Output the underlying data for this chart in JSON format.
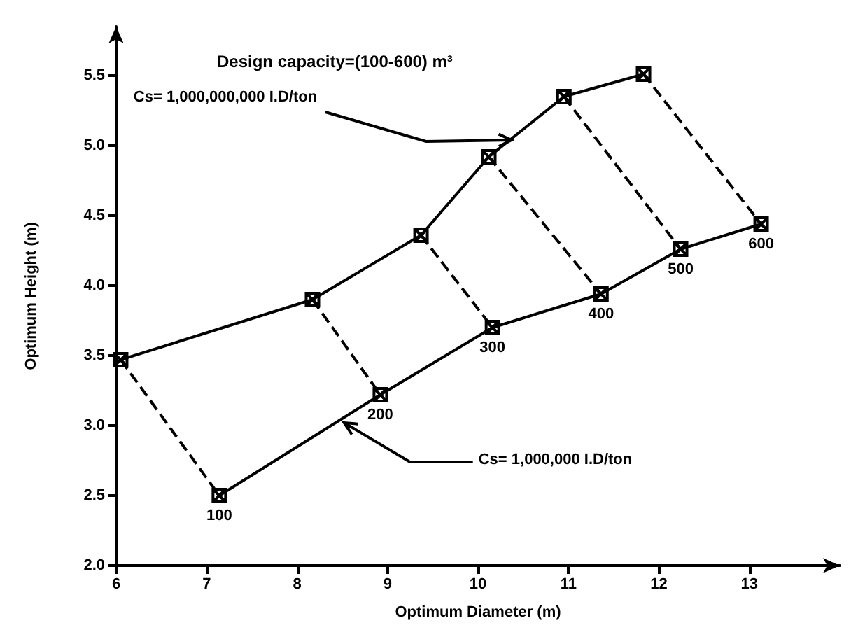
{
  "chart_data": {
    "type": "line",
    "title": "Design capacity=(100-600) m³",
    "xlabel": "Optimum Diameter (m)",
    "ylabel": "Optimum Height (m)",
    "xlim": [
      6,
      14
    ],
    "xticks": [
      6,
      7,
      8,
      9,
      10,
      11,
      12,
      13
    ],
    "ylim": [
      2,
      5.85
    ],
    "yticks": [
      {
        "value": 2,
        "label": "2.0"
      },
      {
        "value": 2.5,
        "label": "2.5"
      },
      {
        "value": 3,
        "label": "3.0"
      },
      {
        "value": 3.5,
        "label": "3.5"
      },
      {
        "value": 4,
        "label": "4.0"
      },
      {
        "value": 4.5,
        "label": "4.5"
      },
      {
        "value": 5,
        "label": "5.0"
      },
      {
        "value": 5.5,
        "label": "5.5"
      }
    ],
    "grid": false,
    "marker": "cross",
    "series": [
      {
        "color": "#000000",
        "x": [
          6.05,
          8.17,
          9.37,
          10.12,
          10.95,
          11.83
        ],
        "values": [
          3.47,
          3.9,
          4.36,
          4.92,
          5.35,
          5.51
        ]
      },
      {
        "color": "#000000",
        "x": [
          7.14,
          8.92,
          10.16,
          11.36,
          12.24,
          13.13
        ],
        "values": [
          2.5,
          3.22,
          3.7,
          3.94,
          4.26,
          4.44
        ]
      },
      {
        "color": "#000000",
        "line_style": "dashed",
        "marker": "none",
        "x": [
          6.05,
          7.14
        ],
        "values": [
          3.47,
          2.5
        ]
      },
      {
        "color": "#000000",
        "line_style": "dashed",
        "marker": "none",
        "x": [
          8.17,
          8.92
        ],
        "values": [
          3.9,
          3.22
        ]
      },
      {
        "color": "#000000",
        "line_style": "dashed",
        "marker": "none",
        "x": [
          9.37,
          10.16
        ],
        "values": [
          4.36,
          3.7
        ]
      },
      {
        "color": "#000000",
        "line_style": "dashed",
        "marker": "none",
        "x": [
          10.12,
          11.36
        ],
        "values": [
          4.92,
          3.94
        ]
      },
      {
        "color": "#000000",
        "line_style": "dashed",
        "marker": "none",
        "x": [
          10.95,
          12.24
        ],
        "values": [
          5.35,
          4.26
        ]
      },
      {
        "color": "#000000",
        "line_style": "dashed",
        "marker": "none",
        "x": [
          11.83,
          13.13
        ],
        "values": [
          5.51,
          4.44
        ]
      }
    ],
    "annotations": [
      {
        "text": "Cs= 1,000,000,000 I.D/ton",
        "x": 10.37,
        "y": 5.04
      },
      {
        "text": "Cs= 1,000,000 I.D/ton",
        "x": 8.52,
        "y": 3.02
      },
      {
        "text": "100",
        "x": 7.14,
        "y": 2.5
      },
      {
        "text": "200",
        "x": 8.92,
        "y": 3.22
      },
      {
        "text": "300",
        "x": 10.16,
        "y": 3.7
      },
      {
        "text": "400",
        "x": 11.36,
        "y": 3.94
      },
      {
        "text": "500",
        "x": 12.24,
        "y": 4.26
      },
      {
        "text": "600",
        "x": 13.13,
        "y": 4.44
      }
    ]
  }
}
